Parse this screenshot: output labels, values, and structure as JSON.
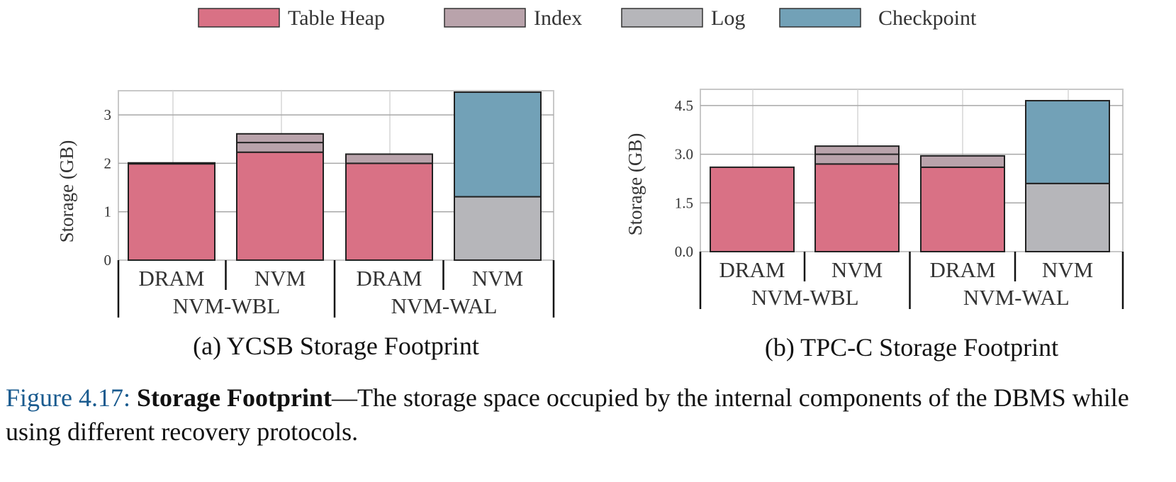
{
  "legend": [
    {
      "name": "Table Heap",
      "color": "#d97185"
    },
    {
      "name": "Index",
      "color": "#b9a3ab"
    },
    {
      "name": "Log",
      "color": "#b6b6ba"
    },
    {
      "name": "Checkpoint",
      "color": "#72a1b7"
    }
  ],
  "chart_data": [
    {
      "type": "bar",
      "stacked": true,
      "title": "(a) YCSB Storage Footprint",
      "ylabel": "Storage (GB)",
      "ylim": [
        0,
        3.5
      ],
      "yticks": [
        "0",
        "1",
        "2",
        "3"
      ],
      "ytick_values": [
        0,
        1,
        2,
        3
      ],
      "categories": [
        "DRAM",
        "NVM",
        "DRAM",
        "NVM"
      ],
      "groups": [
        {
          "label": "NVM-WBL",
          "categories": [
            0,
            1
          ]
        },
        {
          "label": "NVM-WAL",
          "categories": [
            2,
            3
          ]
        }
      ],
      "series": [
        {
          "name": "Table Heap",
          "color": "#d97185",
          "values": [
            2.0,
            2.23,
            2.0,
            0
          ]
        },
        {
          "name": "Index",
          "color": "#b9a3ab",
          "values": [
            0.01,
            0.38,
            0.19,
            0
          ]
        },
        {
          "name": "Log",
          "color": "#b6b6ba",
          "values": [
            0,
            0,
            0,
            1.31
          ]
        },
        {
          "name": "Checkpoint",
          "color": "#72a1b7",
          "values": [
            0,
            0,
            0,
            2.16
          ]
        }
      ],
      "index_dividers": [
        [],
        [
          2.43
        ],
        [],
        []
      ],
      "grid": true
    },
    {
      "type": "bar",
      "stacked": true,
      "title": "(b) TPC-C Storage Footprint",
      "ylabel": "Storage (GB)",
      "ylim": [
        0,
        5.0
      ],
      "yticks": [
        "0.0",
        "1.5",
        "3.0",
        "4.5"
      ],
      "ytick_values": [
        0,
        1.5,
        3.0,
        4.5
      ],
      "categories": [
        "DRAM",
        "NVM",
        "DRAM",
        "NVM"
      ],
      "groups": [
        {
          "label": "NVM-WBL",
          "categories": [
            0,
            1
          ]
        },
        {
          "label": "NVM-WAL",
          "categories": [
            2,
            3
          ]
        }
      ],
      "series": [
        {
          "name": "Table Heap",
          "color": "#d97185",
          "values": [
            2.6,
            2.7,
            2.6,
            0
          ]
        },
        {
          "name": "Index",
          "color": "#b9a3ab",
          "values": [
            0,
            0.55,
            0.35,
            0
          ]
        },
        {
          "name": "Log",
          "color": "#b6b6ba",
          "values": [
            0,
            0,
            0,
            2.1
          ]
        },
        {
          "name": "Checkpoint",
          "color": "#72a1b7",
          "values": [
            0,
            0,
            0,
            2.55
          ]
        }
      ],
      "index_dividers": [
        [],
        [
          3.0
        ],
        [],
        []
      ],
      "grid": true
    }
  ],
  "caption": {
    "number": "Figure 4.17:",
    "title": "Storage Footprint",
    "text": "—The storage space occupied by the internal components of the DBMS while using different recovery protocols."
  }
}
